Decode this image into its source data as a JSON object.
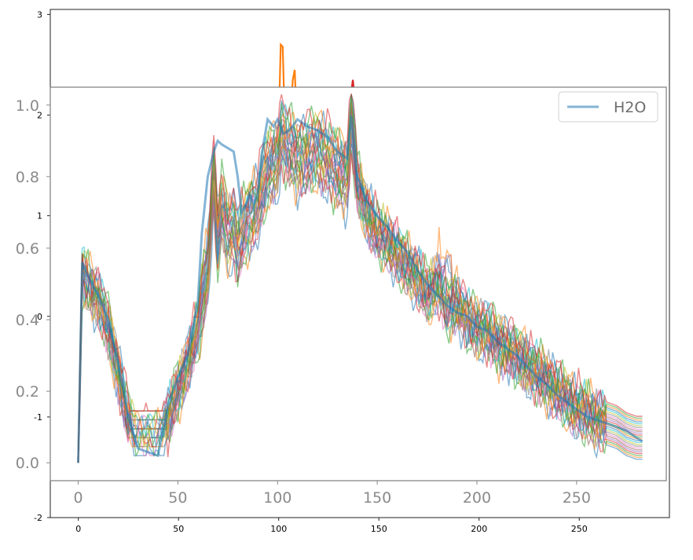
{
  "chart_data": [
    {
      "type": "line",
      "role": "background-axes",
      "x_ticks": [
        0,
        50,
        100,
        150,
        200,
        250
      ],
      "y_ticks": [
        -2,
        -1,
        0,
        1,
        2,
        3
      ],
      "xlim": [
        -14,
        295
      ],
      "ylim": [
        -2.0,
        3.05
      ],
      "grid": false,
      "legend": null,
      "series": [
        {
          "color": "#ff7f0e",
          "x": [
            100,
            101,
            102,
            103,
            104,
            105,
            106,
            107,
            108,
            109,
            110
          ],
          "y": [
            1.9,
            2.7,
            2.68,
            1.95,
            1.88,
            1.9,
            2.0,
            2.35,
            2.45,
            1.95,
            1.9
          ]
        },
        {
          "color": "#d62728",
          "x": [
            134,
            135,
            136,
            137,
            138,
            139,
            140
          ],
          "y": [
            1.95,
            2.05,
            2.2,
            2.35,
            2.15,
            1.95,
            1.88
          ]
        }
      ]
    },
    {
      "type": "line",
      "role": "front-axes",
      "x_ticks": [
        0,
        50,
        100,
        150,
        200,
        250
      ],
      "y_ticks": [
        "0.0",
        "0.2",
        "0.4",
        "0.6",
        "0.8",
        "1.0"
      ],
      "xlim": [
        -14,
        295
      ],
      "ylim": [
        -0.05,
        1.05
      ],
      "grid": false,
      "legend": {
        "position": "upper-right",
        "entries": [
          "H2O"
        ]
      },
      "highlight": {
        "name": "H2O",
        "color": "#1f77b4",
        "x": [
          0,
          2,
          5,
          10,
          15,
          20,
          25,
          30,
          35,
          40,
          45,
          50,
          55,
          60,
          62,
          65,
          68,
          70,
          72,
          75,
          78,
          80,
          82,
          84,
          86,
          88,
          90,
          92,
          95,
          98,
          100,
          103,
          106,
          110,
          115,
          120,
          125,
          130,
          135,
          137,
          140,
          145,
          150,
          155,
          160,
          165,
          170,
          175,
          180,
          185,
          190,
          195,
          200,
          205,
          210,
          215,
          220,
          225,
          230,
          235,
          240,
          245,
          250,
          255,
          260,
          265,
          270,
          275,
          280,
          283
        ],
        "y": [
          0.0,
          0.56,
          0.52,
          0.47,
          0.4,
          0.28,
          0.13,
          0.04,
          0.03,
          0.02,
          0.16,
          0.24,
          0.3,
          0.45,
          0.64,
          0.8,
          0.87,
          0.9,
          0.89,
          0.88,
          0.87,
          0.8,
          0.7,
          0.72,
          0.75,
          0.72,
          0.75,
          0.86,
          0.96,
          0.94,
          0.96,
          0.92,
          0.93,
          0.96,
          0.94,
          0.93,
          0.91,
          0.87,
          0.85,
          0.97,
          0.8,
          0.73,
          0.69,
          0.66,
          0.62,
          0.59,
          0.54,
          0.5,
          0.47,
          0.44,
          0.42,
          0.41,
          0.38,
          0.37,
          0.34,
          0.32,
          0.3,
          0.27,
          0.24,
          0.22,
          0.19,
          0.17,
          0.15,
          0.13,
          0.12,
          0.11,
          0.1,
          0.09,
          0.07,
          0.06
        ]
      },
      "base_curve": {
        "x": [
          0,
          2,
          5,
          10,
          15,
          20,
          25,
          30,
          35,
          40,
          45,
          50,
          55,
          60,
          62,
          65,
          68,
          70,
          72,
          75,
          78,
          80,
          85,
          90,
          95,
          100,
          102,
          105,
          108,
          110,
          115,
          120,
          125,
          130,
          135,
          137,
          140,
          145,
          150,
          155,
          160,
          165,
          170,
          175,
          180,
          185,
          190,
          195,
          200,
          205,
          210,
          215,
          220,
          225,
          230,
          235,
          240,
          245,
          250,
          255,
          260,
          265,
          270,
          275,
          280,
          283
        ],
        "y": [
          0.0,
          0.53,
          0.5,
          0.46,
          0.38,
          0.26,
          0.12,
          0.05,
          0.06,
          0.05,
          0.12,
          0.2,
          0.28,
          0.37,
          0.45,
          0.55,
          0.8,
          0.62,
          0.72,
          0.64,
          0.66,
          0.6,
          0.68,
          0.72,
          0.82,
          0.85,
          0.92,
          0.88,
          0.87,
          0.85,
          0.86,
          0.88,
          0.85,
          0.82,
          0.8,
          0.97,
          0.78,
          0.7,
          0.64,
          0.62,
          0.58,
          0.55,
          0.52,
          0.47,
          0.5,
          0.43,
          0.45,
          0.4,
          0.38,
          0.37,
          0.34,
          0.32,
          0.3,
          0.28,
          0.25,
          0.23,
          0.2,
          0.18,
          0.15,
          0.14,
          0.12,
          0.11,
          0.1,
          0.08,
          0.07,
          0.07
        ]
      },
      "variant_count": 24,
      "variant_colors": [
        "#1f77b4",
        "#ff7f0e",
        "#2ca02c",
        "#d62728",
        "#9467bd",
        "#8c564b",
        "#e377c2",
        "#7f7f7f",
        "#bcbd22",
        "#17becf"
      ]
    }
  ]
}
